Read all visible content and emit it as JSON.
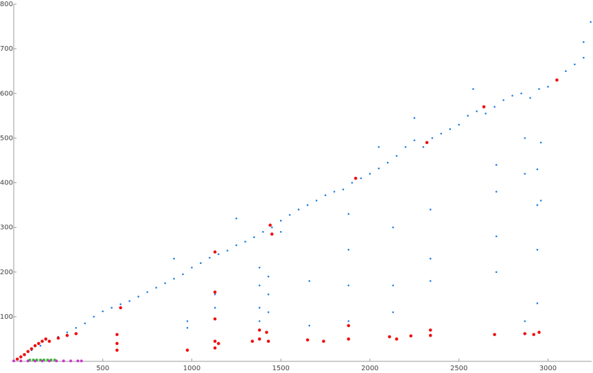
{
  "chart_data": {
    "type": "scatter",
    "xlim": [
      0,
      3245
    ],
    "ylim": [
      0,
      800
    ],
    "xticks": [
      500,
      1000,
      1500,
      2000,
      2500,
      3000
    ],
    "yticks": [
      100,
      200,
      300,
      400,
      500,
      600,
      700,
      800
    ],
    "series": [
      {
        "color": "#1e7fe0",
        "x": [
          60,
          100,
          150,
          200,
          250,
          300,
          350,
          400,
          450,
          500,
          550,
          600,
          650,
          700,
          750,
          800,
          850,
          900,
          950,
          1000,
          1050,
          1100,
          1150,
          1200,
          1250,
          1300,
          1350,
          1400,
          1450,
          1500,
          1550,
          1600,
          1650,
          1700,
          1750,
          1800,
          1850,
          1900,
          1950,
          2000,
          2050,
          2100,
          2150,
          2200,
          2250,
          2300,
          2350,
          2400,
          2450,
          2500,
          2550,
          2600,
          2650,
          2700,
          2750,
          2800,
          2850,
          2900,
          2950,
          3000,
          3050,
          3100,
          3150,
          3200,
          3240,
          1250,
          1500,
          2250,
          2580,
          3200,
          900,
          2050,
          975,
          975,
          1130,
          1130,
          1380,
          1380,
          1380,
          1380,
          1430,
          1430,
          1430,
          1660,
          1660,
          1880,
          1880,
          1880,
          1880,
          2130,
          2130,
          2130,
          2340,
          2340,
          2340,
          2710,
          2710,
          2710,
          2710,
          2870,
          2870,
          2870,
          2940,
          2940,
          2940,
          2940,
          2960,
          2960
        ],
        "values": [
          15,
          25,
          35,
          45,
          55,
          65,
          75,
          85,
          100,
          112,
          120,
          128,
          135,
          145,
          155,
          165,
          175,
          185,
          195,
          210,
          220,
          232,
          240,
          248,
          260,
          268,
          278,
          290,
          300,
          315,
          328,
          340,
          350,
          360,
          372,
          380,
          385,
          400,
          410,
          420,
          432,
          445,
          460,
          480,
          495,
          480,
          500,
          510,
          520,
          530,
          550,
          560,
          555,
          570,
          585,
          595,
          600,
          590,
          610,
          615,
          630,
          650,
          665,
          680,
          760,
          320,
          290,
          545,
          610,
          715,
          230,
          480,
          90,
          75,
          150,
          120,
          210,
          170,
          120,
          90,
          190,
          150,
          110,
          180,
          80,
          330,
          250,
          170,
          90,
          300,
          170,
          110,
          340,
          230,
          180,
          440,
          380,
          280,
          200,
          500,
          420,
          90,
          430,
          350,
          250,
          130,
          490,
          360
        ]
      },
      {
        "color": "#ee1111",
        "x": [
          20,
          40,
          60,
          80,
          100,
          120,
          140,
          160,
          180,
          200,
          250,
          300,
          350,
          580,
          580,
          580,
          600,
          975,
          1130,
          1130,
          1130,
          1130,
          1150,
          1130,
          1340,
          1380,
          1380,
          1420,
          1430,
          1440,
          1450,
          1650,
          1740,
          1880,
          1880,
          1920,
          2110,
          2150,
          2230,
          2320,
          2340,
          2340,
          2700,
          2640,
          2870,
          2920,
          2950,
          3050
        ],
        "values": [
          5,
          10,
          15,
          22,
          28,
          35,
          40,
          45,
          50,
          45,
          52,
          58,
          62,
          60,
          40,
          25,
          120,
          25,
          155,
          95,
          45,
          30,
          40,
          245,
          45,
          70,
          50,
          65,
          45,
          305,
          285,
          48,
          45,
          50,
          80,
          410,
          55,
          50,
          57,
          490,
          70,
          58,
          60,
          570,
          62,
          60,
          65,
          630
        ]
      },
      {
        "color": "#33bb33",
        "x": [
          90,
          110,
          130,
          150,
          170,
          190,
          210,
          230
        ],
        "values": [
          3,
          3,
          3,
          3,
          3,
          3,
          3,
          3
        ]
      },
      {
        "color": "#cc33cc",
        "x": [
          0,
          40,
          80,
          120,
          160,
          200,
          240,
          280,
          320,
          360,
          380
        ],
        "values": [
          1,
          1,
          1,
          1,
          1,
          1,
          1,
          1,
          1,
          1,
          1
        ]
      }
    ]
  }
}
